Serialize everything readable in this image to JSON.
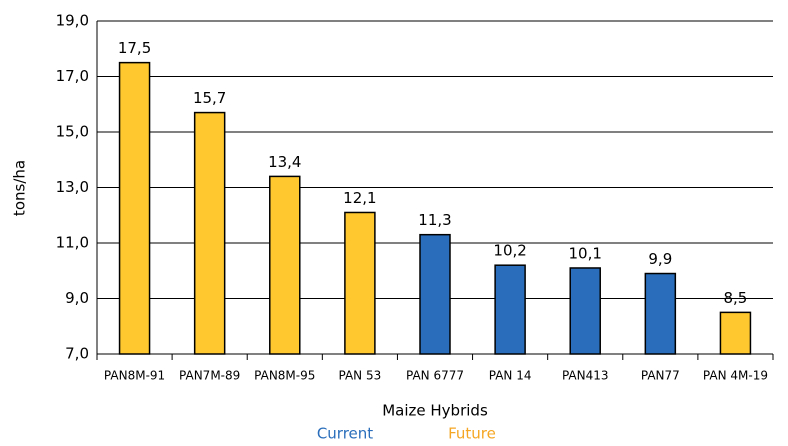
{
  "chart_data": {
    "type": "bar",
    "y_axis_label": "tons/ha",
    "x_axis_label": "Maize Hybrids",
    "categories": [
      "PAN8M-91",
      "PAN7M-89",
      "PAN8M-95",
      "PAN 53",
      "PAN 6777",
      "PAN 14",
      "PAN413",
      "PAN77",
      "PAN 4M-19"
    ],
    "values": [
      17.5,
      15.7,
      13.4,
      12.1,
      11.3,
      10.2,
      10.1,
      9.9,
      8.5
    ],
    "value_labels": [
      "17,5",
      "15,7",
      "13,4",
      "12,1",
      "11,3",
      "10,2",
      "10,1",
      "9,9",
      "8,5"
    ],
    "bar_colors": [
      "#ffc82e",
      "#ffc82e",
      "#ffc82e",
      "#ffc82e",
      "#2a6ebb",
      "#2a6ebb",
      "#2a6ebb",
      "#2a6ebb",
      "#ffc82e"
    ],
    "legend": [
      {
        "name": "Current",
        "color": "#2a6ebb"
      },
      {
        "name": "Future",
        "color": "#f5a623"
      }
    ],
    "ylim": [
      7,
      19
    ],
    "yticks": [
      {
        "value": 7,
        "label": "7,0"
      },
      {
        "value": 9,
        "label": "9,0"
      },
      {
        "value": 11,
        "label": "11,0"
      },
      {
        "value": 13,
        "label": "13,0"
      },
      {
        "value": 15,
        "label": "15,0"
      },
      {
        "value": 17,
        "label": "17,0"
      },
      {
        "value": 19,
        "label": "19,0"
      }
    ],
    "grid": true
  }
}
